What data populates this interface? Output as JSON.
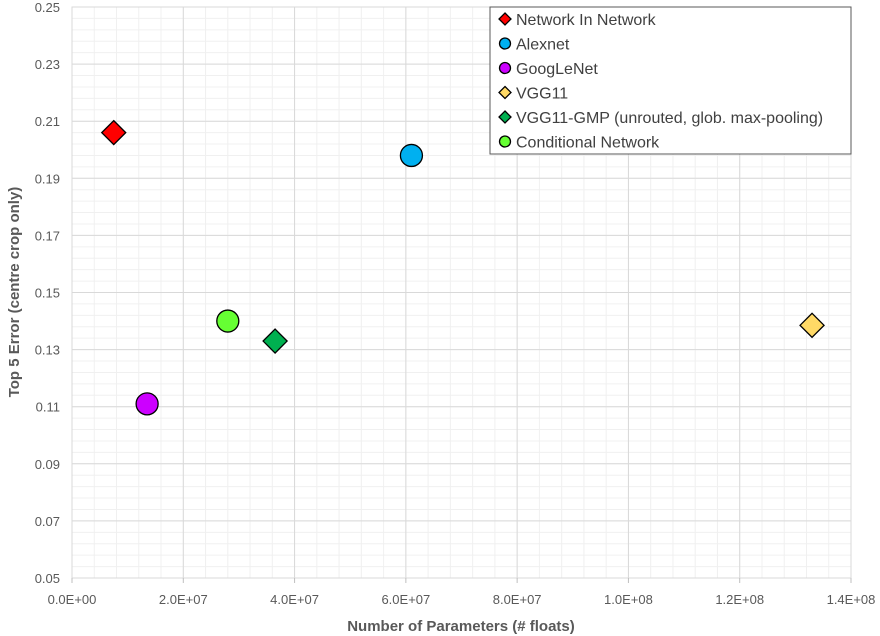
{
  "chart_data": {
    "type": "scatter",
    "xlabel": "Number of Parameters (# floats)",
    "ylabel": "Top 5 Error (centre crop only)",
    "xlim": [
      0,
      140000000
    ],
    "ylim": [
      0.05,
      0.25
    ],
    "x_ticks": [
      0,
      20000000,
      40000000,
      60000000,
      80000000,
      100000000,
      120000000,
      140000000
    ],
    "x_tick_labels": [
      "0.0E+00",
      "2.0E+07",
      "4.0E+07",
      "6.0E+07",
      "8.0E+07",
      "1.0E+08",
      "1.2E+08",
      "1.4E+08"
    ],
    "y_ticks": [
      0.05,
      0.07,
      0.09,
      0.11,
      0.13,
      0.15,
      0.17,
      0.19,
      0.21,
      0.23,
      0.25
    ],
    "y_tick_labels": [
      "0.05",
      "0.07",
      "0.09",
      "0.11",
      "0.13",
      "0.15",
      "0.17",
      "0.19",
      "0.21",
      "0.23",
      "0.25"
    ],
    "grid": true,
    "legend_position": "top-right",
    "series": [
      {
        "name": "Network In Network",
        "marker": "diamond",
        "color": "#ff0000",
        "x": [
          7500000
        ],
        "y": [
          0.206
        ]
      },
      {
        "name": "Alexnet",
        "marker": "circle",
        "color": "#00b0f0",
        "x": [
          61000000
        ],
        "y": [
          0.198
        ]
      },
      {
        "name": "GoogLeNet",
        "marker": "circle",
        "color": "#cc00ff",
        "x": [
          13500000
        ],
        "y": [
          0.111
        ]
      },
      {
        "name": "VGG11",
        "marker": "diamond",
        "color": "#ffd966",
        "x": [
          133000000
        ],
        "y": [
          0.1385
        ]
      },
      {
        "name": "VGG11-GMP (unrouted, glob. max-pooling)",
        "marker": "diamond",
        "color": "#00b050",
        "x": [
          36500000
        ],
        "y": [
          0.133
        ]
      },
      {
        "name": "Conditional Network",
        "marker": "circle",
        "color": "#66ff33",
        "x": [
          28000000
        ],
        "y": [
          0.14
        ]
      }
    ]
  }
}
